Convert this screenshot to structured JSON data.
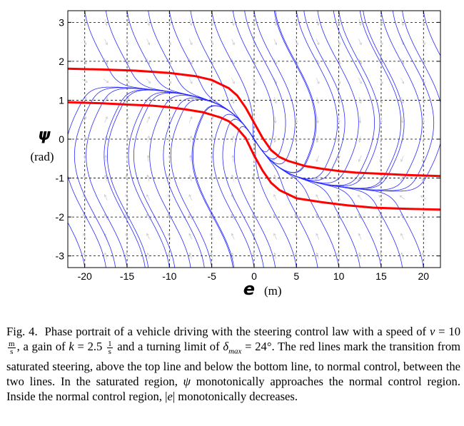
{
  "figure": {
    "x_symbol": "e",
    "x_unit": "(m)",
    "y_symbol": "ψ",
    "y_unit": "(rad)"
  },
  "chart_data": {
    "type": "phase portrait",
    "xlabel": "e (m)",
    "ylabel": "ψ (rad)",
    "xlim": [
      -22,
      22
    ],
    "ylim": [
      -3.3,
      3.3
    ],
    "x_ticks": [
      -20,
      -15,
      -10,
      -5,
      0,
      5,
      10,
      15,
      20
    ],
    "x_tick_labels": [
      "-20",
      "-15",
      "-10",
      "-5",
      "0",
      "5",
      "10",
      "15",
      "20"
    ],
    "y_ticks": [
      -3,
      -2,
      -1,
      0,
      1,
      2,
      3
    ],
    "y_tick_labels": [
      "-3",
      "-2",
      "-1",
      "0",
      "1",
      "2",
      "3"
    ],
    "grid": true,
    "parameters": {
      "v": 10,
      "k": 2.5,
      "delta_max_deg": 24
    },
    "trajectory_color": "#2a2aff",
    "boundary_color": "#ff0000",
    "series": [
      {
        "x": [
          -22,
          -18,
          -14,
          -10,
          -7,
          -5,
          -3,
          -2,
          -1,
          0,
          1,
          2,
          3,
          4,
          6,
          8,
          10,
          12,
          15,
          18,
          22
        ],
        "y": [
          1.81,
          1.79,
          1.76,
          1.7,
          1.62,
          1.52,
          1.31,
          1.12,
          0.81,
          0.42,
          0.03,
          -0.28,
          -0.46,
          -0.56,
          -0.69,
          -0.76,
          -0.82,
          -0.86,
          -0.89,
          -0.92,
          -0.95
        ]
      },
      {
        "x": [
          -22,
          -18,
          -15,
          -12,
          -10,
          -8,
          -6,
          -4,
          -3,
          -2,
          -1,
          0,
          1,
          2,
          3,
          5,
          8,
          11,
          14,
          18,
          22
        ],
        "y": [
          0.95,
          0.92,
          0.89,
          0.86,
          0.82,
          0.76,
          0.69,
          0.56,
          0.46,
          0.28,
          0.03,
          -0.42,
          -0.81,
          -1.12,
          -1.31,
          -1.52,
          -1.62,
          -1.7,
          -1.76,
          -1.79,
          -1.81
        ]
      }
    ]
  },
  "caption": {
    "label": "Fig. 4.",
    "part1": "Phase portrait of a vehicle driving with the steering control law with a speed of ",
    "v_sym": "v",
    "part2": " = 10 ",
    "speed_num": "m",
    "speed_den": "s",
    "part3": ", a gain of ",
    "k_sym": "k",
    "part4": " = 2.5 ",
    "gain_num": "1",
    "gain_den": "s",
    "part5": " and a turning limit of ",
    "delta_sym": "δ",
    "delta_sub": "max",
    "part6": " = 24°. The red lines mark the transition from saturated steering, above the top line and below the bottom line, to normal control, between the two lines. In the saturated region, ",
    "psi_sym": "ψ",
    "part7": " monotonically approaches the normal control region. Inside the normal control region, |",
    "e_sym": "e",
    "part8": "| monotonically decreases."
  }
}
